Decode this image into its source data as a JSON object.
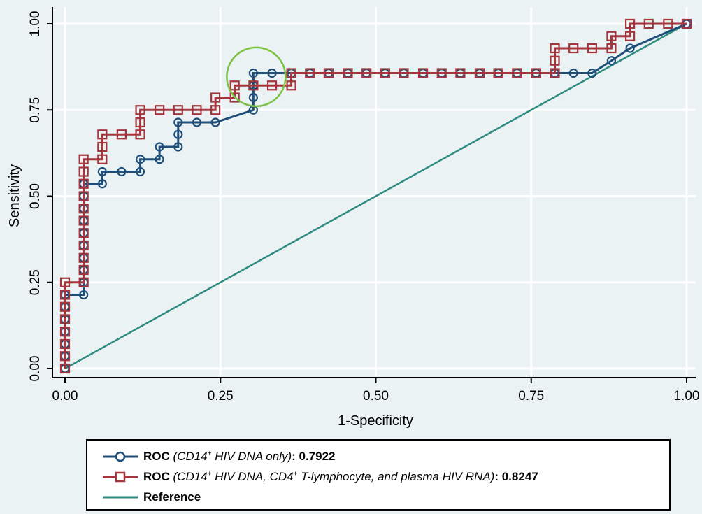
{
  "chart_data": {
    "type": "line",
    "xlabel": "1-Specificity",
    "ylabel": "Sensitivity",
    "xlim": [
      0,
      1
    ],
    "ylim": [
      0,
      1
    ],
    "x_ticks": [
      "0.00",
      "0.25",
      "0.50",
      "0.75",
      "1.00"
    ],
    "y_ticks": [
      "0.00",
      "0.25",
      "0.50",
      "0.75",
      "1.00"
    ],
    "grid": true,
    "legend_position": "bottom",
    "series": [
      {
        "name": "ROC (CD14+ HIV DNA only): 0.7922",
        "color": "#1f4e79",
        "marker": "circle",
        "points": [
          [
            0,
            0
          ],
          [
            0,
            0.036
          ],
          [
            0,
            0.071
          ],
          [
            0,
            0.107
          ],
          [
            0,
            0.143
          ],
          [
            0,
            0.179
          ],
          [
            0,
            0.214
          ],
          [
            0.03,
            0.214
          ],
          [
            0.03,
            0.25
          ],
          [
            0.03,
            0.286
          ],
          [
            0.03,
            0.321
          ],
          [
            0.03,
            0.357
          ],
          [
            0.03,
            0.393
          ],
          [
            0.03,
            0.429
          ],
          [
            0.03,
            0.464
          ],
          [
            0.03,
            0.5
          ],
          [
            0.03,
            0.536
          ],
          [
            0.06,
            0.536
          ],
          [
            0.06,
            0.571
          ],
          [
            0.091,
            0.571
          ],
          [
            0.121,
            0.571
          ],
          [
            0.121,
            0.607
          ],
          [
            0.152,
            0.607
          ],
          [
            0.152,
            0.643
          ],
          [
            0.182,
            0.643
          ],
          [
            0.182,
            0.679
          ],
          [
            0.182,
            0.714
          ],
          [
            0.212,
            0.714
          ],
          [
            0.242,
            0.714
          ],
          [
            0.303,
            0.75
          ],
          [
            0.303,
            0.786
          ],
          [
            0.303,
            0.821
          ],
          [
            0.303,
            0.857
          ],
          [
            0.333,
            0.857
          ],
          [
            0.364,
            0.857
          ],
          [
            0.394,
            0.857
          ],
          [
            0.424,
            0.857
          ],
          [
            0.455,
            0.857
          ],
          [
            0.485,
            0.857
          ],
          [
            0.515,
            0.857
          ],
          [
            0.545,
            0.857
          ],
          [
            0.576,
            0.857
          ],
          [
            0.606,
            0.857
          ],
          [
            0.636,
            0.857
          ],
          [
            0.667,
            0.857
          ],
          [
            0.697,
            0.857
          ],
          [
            0.727,
            0.857
          ],
          [
            0.758,
            0.857
          ],
          [
            0.788,
            0.857
          ],
          [
            0.818,
            0.857
          ],
          [
            0.848,
            0.857
          ],
          [
            0.879,
            0.893
          ],
          [
            0.909,
            0.929
          ],
          [
            1,
            1
          ]
        ]
      },
      {
        "name": "ROC (CD14+ HIV DNA, CD4+ T-lymphocyte, and plasma HIV RNA): 0.8247",
        "color": "#a5343c",
        "marker": "square",
        "points": [
          [
            0,
            0
          ],
          [
            0,
            0.036
          ],
          [
            0,
            0.071
          ],
          [
            0,
            0.107
          ],
          [
            0,
            0.143
          ],
          [
            0,
            0.179
          ],
          [
            0,
            0.214
          ],
          [
            0,
            0.25
          ],
          [
            0.03,
            0.25
          ],
          [
            0.03,
            0.286
          ],
          [
            0.03,
            0.321
          ],
          [
            0.03,
            0.357
          ],
          [
            0.03,
            0.393
          ],
          [
            0.03,
            0.429
          ],
          [
            0.03,
            0.464
          ],
          [
            0.03,
            0.5
          ],
          [
            0.03,
            0.536
          ],
          [
            0.03,
            0.571
          ],
          [
            0.03,
            0.607
          ],
          [
            0.06,
            0.607
          ],
          [
            0.06,
            0.643
          ],
          [
            0.06,
            0.679
          ],
          [
            0.091,
            0.679
          ],
          [
            0.121,
            0.679
          ],
          [
            0.121,
            0.714
          ],
          [
            0.121,
            0.75
          ],
          [
            0.152,
            0.75
          ],
          [
            0.182,
            0.75
          ],
          [
            0.212,
            0.75
          ],
          [
            0.242,
            0.75
          ],
          [
            0.242,
            0.786
          ],
          [
            0.273,
            0.786
          ],
          [
            0.273,
            0.821
          ],
          [
            0.303,
            0.821
          ],
          [
            0.333,
            0.821
          ],
          [
            0.364,
            0.821
          ],
          [
            0.364,
            0.857
          ],
          [
            0.394,
            0.857
          ],
          [
            0.424,
            0.857
          ],
          [
            0.455,
            0.857
          ],
          [
            0.485,
            0.857
          ],
          [
            0.515,
            0.857
          ],
          [
            0.545,
            0.857
          ],
          [
            0.576,
            0.857
          ],
          [
            0.606,
            0.857
          ],
          [
            0.636,
            0.857
          ],
          [
            0.667,
            0.857
          ],
          [
            0.697,
            0.857
          ],
          [
            0.727,
            0.857
          ],
          [
            0.758,
            0.857
          ],
          [
            0.788,
            0.857
          ],
          [
            0.788,
            0.893
          ],
          [
            0.788,
            0.929
          ],
          [
            0.818,
            0.929
          ],
          [
            0.848,
            0.929
          ],
          [
            0.879,
            0.929
          ],
          [
            0.879,
            0.964
          ],
          [
            0.909,
            0.964
          ],
          [
            0.909,
            1
          ],
          [
            0.939,
            1
          ],
          [
            0.97,
            1
          ],
          [
            1,
            1
          ]
        ]
      },
      {
        "name": "Reference",
        "color": "#2e8b7f",
        "marker": "none",
        "points": [
          [
            0,
            0
          ],
          [
            1,
            1
          ]
        ]
      }
    ],
    "annotations": [
      {
        "type": "circle",
        "color": "#7cc242",
        "center": [
          0.303,
          0.84
        ]
      }
    ]
  },
  "legend": {
    "items": [
      {
        "bold_label": "ROC",
        "italic_prefix": "(CD14",
        "sup1": "+",
        "italic_rest": " HIV DNA only)",
        "value": ": 0.7922"
      },
      {
        "bold_label": "ROC",
        "italic_prefix": "(CD14",
        "sup1": "+",
        "italic_mid": " HIV DNA, CD4",
        "sup2": "+",
        "italic_rest": " T-lymphocyte, and plasma HIV RNA)",
        "value": ": 0.8247"
      },
      {
        "bold_label": "Reference"
      }
    ]
  }
}
